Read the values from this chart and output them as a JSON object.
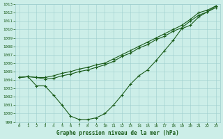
{
  "xlabel": "Graphe pression niveau de la mer (hPa)",
  "x": [
    0,
    1,
    2,
    3,
    4,
    5,
    6,
    7,
    8,
    9,
    10,
    11,
    12,
    13,
    14,
    15,
    16,
    17,
    18,
    19,
    20,
    21,
    22,
    23
  ],
  "line_top": [
    1004.3,
    1004.4,
    1004.3,
    1004.3,
    1004.5,
    1004.8,
    1005.0,
    1005.3,
    1005.5,
    1005.8,
    1006.0,
    1006.5,
    1007.0,
    1007.5,
    1008.0,
    1008.5,
    1009.0,
    1009.5,
    1010.0,
    1010.5,
    1011.2,
    1012.0,
    1012.3,
    1012.8
  ],
  "line_mid": [
    1004.3,
    1004.4,
    1004.3,
    1004.1,
    1004.2,
    1004.5,
    1004.7,
    1005.0,
    1005.2,
    1005.5,
    1005.8,
    1006.2,
    1006.8,
    1007.2,
    1007.8,
    1008.2,
    1008.8,
    1009.2,
    1009.8,
    1010.2,
    1011.0,
    1011.7,
    1012.1,
    1012.6
  ],
  "line_bot": [
    1004.3,
    1004.4,
    1003.3,
    1003.3,
    1002.2,
    1001.0,
    999.7,
    999.3,
    999.3,
    999.5,
    1000.0,
    1001.0,
    1002.2,
    1003.5,
    1004.5,
    1005.2,
    1006.3,
    1007.5,
    1008.7,
    1010.1,
    1010.5,
    1011.5,
    1012.1,
    1012.8
  ],
  "ylim": [
    999,
    1013
  ],
  "yticks": [
    999,
    1000,
    1001,
    1002,
    1003,
    1004,
    1005,
    1006,
    1007,
    1008,
    1009,
    1010,
    1011,
    1012,
    1013
  ],
  "xticks": [
    0,
    1,
    2,
    3,
    4,
    5,
    6,
    7,
    8,
    9,
    10,
    11,
    12,
    13,
    14,
    15,
    16,
    17,
    18,
    19,
    20,
    21,
    22,
    23
  ],
  "bg_color": "#cceee8",
  "line_color": "#1a5c1a",
  "grid_color": "#9ecece",
  "label_color": "#1a5c1a",
  "title_color": "#1a5c1a"
}
